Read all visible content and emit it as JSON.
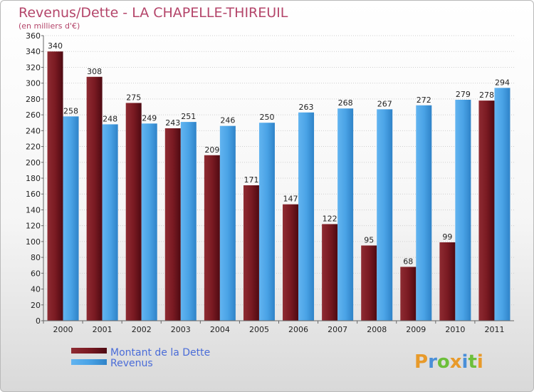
{
  "chart_data": {
    "type": "bar",
    "title": "Revenus/Dette - LA CHAPELLE-THIREUIL",
    "subtitle": "(en milliers d'€)",
    "categories": [
      "2000",
      "2001",
      "2002",
      "2003",
      "2004",
      "2005",
      "2006",
      "2007",
      "2008",
      "2009",
      "2010",
      "2011"
    ],
    "series": [
      {
        "name": "Montant de la Dette",
        "color": "#7a1a22",
        "values": [
          340,
          308,
          275,
          243,
          209,
          171,
          147,
          122,
          95,
          68,
          99,
          278
        ]
      },
      {
        "name": "Revenus",
        "color": "#4aa3e6",
        "values": [
          258,
          248,
          249,
          251,
          246,
          250,
          263,
          268,
          267,
          272,
          279,
          294
        ]
      }
    ],
    "ylim": [
      0,
      360
    ],
    "ytick_step": 20,
    "grid": true,
    "legend_position": "bottom-left"
  },
  "logo": {
    "text": "Proxiti",
    "colors": [
      "#e89a2a",
      "#4a8fd8",
      "#6cbf3a"
    ]
  }
}
